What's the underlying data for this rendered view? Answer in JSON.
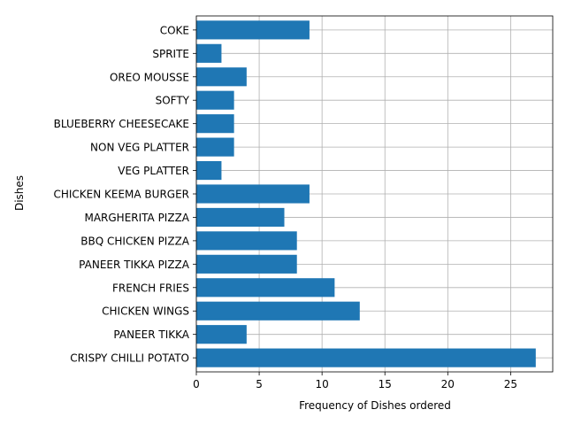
{
  "chart_data": {
    "type": "bar",
    "orientation": "horizontal",
    "title": "",
    "xlabel": "Frequency of Dishes ordered",
    "ylabel": "Dishes",
    "categories": [
      "CRISPY CHILLI POTATO",
      "PANEER TIKKA",
      "CHICKEN WINGS",
      "FRENCH FRIES",
      "PANEER TIKKA PIZZA",
      "BBQ CHICKEN PIZZA",
      "MARGHERITA PIZZA",
      "CHICKEN KEEMA BURGER",
      "VEG PLATTER",
      "NON VEG PLATTER",
      "BLUEBERRY CHEESECAKE",
      "SOFTY",
      "OREO MOUSSE",
      "SPRITE",
      "COKE"
    ],
    "values": [
      27,
      4,
      13,
      11,
      8,
      8,
      7,
      9,
      2,
      3,
      3,
      3,
      4,
      2,
      9
    ],
    "xlim": [
      0,
      28.35
    ],
    "xticks": [
      0,
      5,
      10,
      15,
      20,
      25
    ],
    "grid": true,
    "bar_color": "#1f77b4"
  }
}
